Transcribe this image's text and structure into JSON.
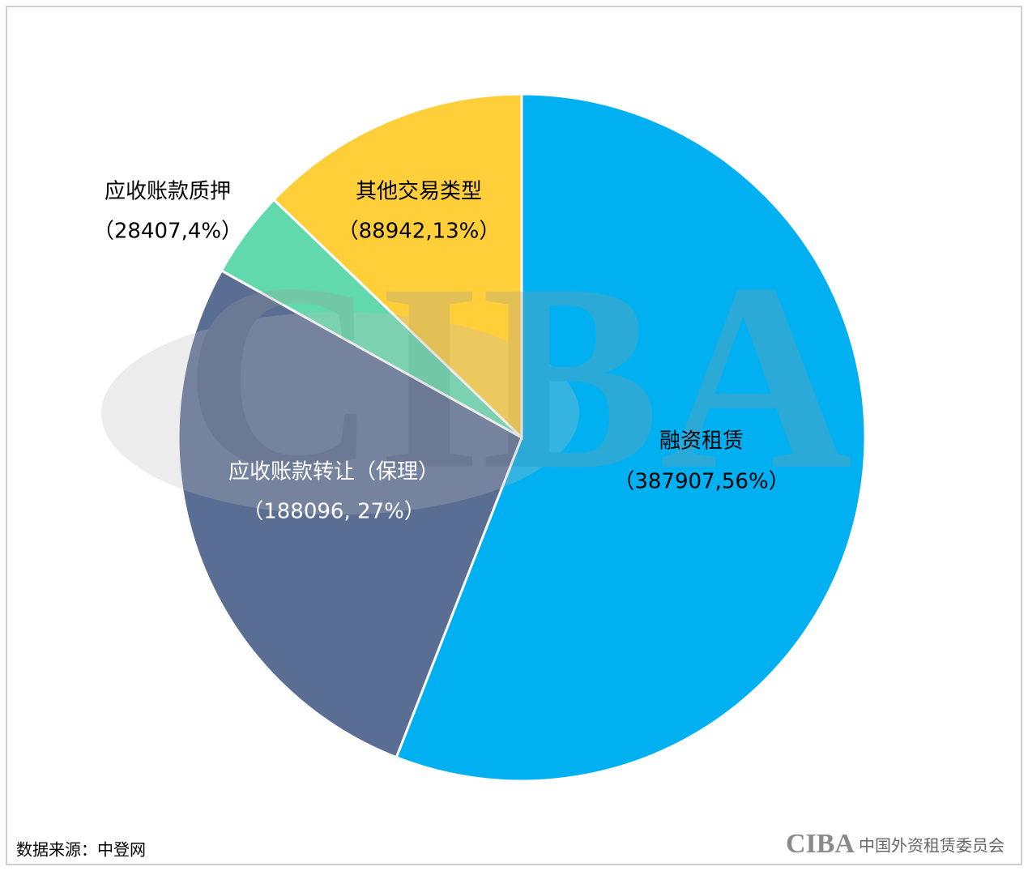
{
  "chart_data": {
    "type": "pie",
    "categories": [
      "融资租赁",
      "应收账款转让（保理）",
      "应收账款质押",
      "其他交易类型"
    ],
    "values": [
      387907,
      188096,
      28407,
      88942
    ],
    "value_labels": [
      "（387907,56%）",
      "（188096, 27%）",
      "（28407,4%）",
      "（88942,13%）"
    ],
    "colors": [
      "#00b0f0",
      "#5a6d93",
      "#62d9ac",
      "#ffcf3a"
    ],
    "source": "数据来源：中登网",
    "watermark": "CIBA",
    "footer_logo": "CIBA",
    "footer_org": "中国外资租赁委员会"
  }
}
